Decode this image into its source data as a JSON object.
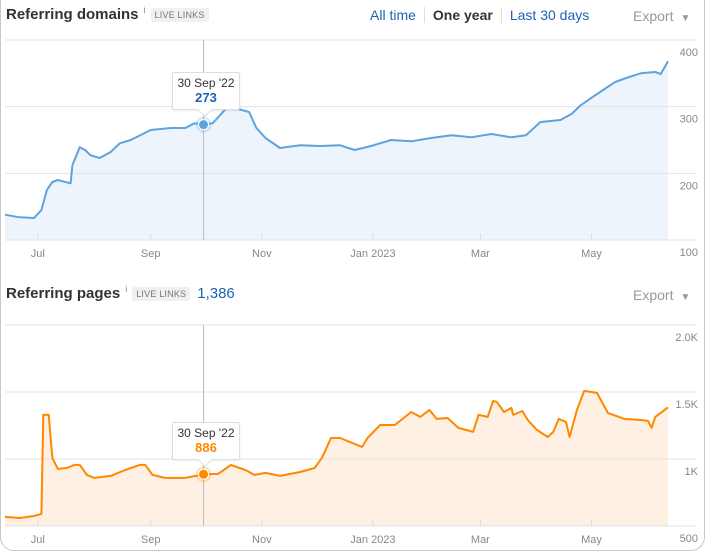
{
  "domains": {
    "title": "Referring domains",
    "info": "i",
    "badge": "LIVE LINKS",
    "range": {
      "all_time": "All time",
      "one_year": "One year",
      "last_30": "Last 30 days",
      "active": "One year"
    },
    "export_label": "Export",
    "export_arrow": "▼",
    "tooltip": {
      "date": "30 Sep '22",
      "value": "273"
    },
    "color": "#5fa2e0",
    "fill": "#eef4fc"
  },
  "pages": {
    "title": "Referring pages",
    "info": "i",
    "badge": "LIVE LINKS",
    "count": "1,386",
    "export_label": "Export",
    "export_arrow": "▼",
    "tooltip": {
      "date": "30 Sep '22",
      "value": "886"
    },
    "color": "#ff8800",
    "fill": "#fef0e2"
  },
  "chart_data": [
    {
      "type": "area",
      "title": "Referring domains",
      "x_unit": "days since 2022-07-01",
      "xlim": [
        -18,
        346
      ],
      "ylim": [
        100,
        400
      ],
      "x_ticks": [
        {
          "x": 0,
          "label": "Jul"
        },
        {
          "x": 62,
          "label": "Sep"
        },
        {
          "x": 123,
          "label": "Nov"
        },
        {
          "x": 184,
          "label": "Jan 2023"
        },
        {
          "x": 243,
          "label": "Mar"
        },
        {
          "x": 304,
          "label": "May"
        }
      ],
      "y_ticks": [
        {
          "y": 400,
          "label": "400"
        },
        {
          "y": 300,
          "label": "300"
        },
        {
          "y": 200,
          "label": "200"
        },
        {
          "y": 100,
          "label": "100"
        }
      ],
      "highlight": {
        "x": 91,
        "y": 273
      },
      "points": [
        [
          -18,
          138
        ],
        [
          -10,
          134
        ],
        [
          -2,
          133
        ],
        [
          2,
          145
        ],
        [
          5,
          175
        ],
        [
          8,
          187
        ],
        [
          11,
          190
        ],
        [
          18,
          185
        ],
        [
          19,
          212
        ],
        [
          23,
          239
        ],
        [
          26,
          235
        ],
        [
          29,
          227
        ],
        [
          34,
          223
        ],
        [
          40,
          232
        ],
        [
          45,
          245
        ],
        [
          51,
          250
        ],
        [
          62,
          265
        ],
        [
          73,
          268
        ],
        [
          81,
          268
        ],
        [
          86,
          275
        ],
        [
          91,
          273
        ],
        [
          96,
          275
        ],
        [
          103,
          296
        ],
        [
          108,
          298
        ],
        [
          116,
          292
        ],
        [
          120,
          268
        ],
        [
          125,
          253
        ],
        [
          133,
          238
        ],
        [
          144,
          242
        ],
        [
          155,
          241
        ],
        [
          166,
          242
        ],
        [
          174,
          235
        ],
        [
          183,
          241
        ],
        [
          194,
          250
        ],
        [
          205,
          248
        ],
        [
          216,
          253
        ],
        [
          227,
          257
        ],
        [
          238,
          254
        ],
        [
          249,
          259
        ],
        [
          260,
          254
        ],
        [
          268,
          257
        ],
        [
          276,
          277
        ],
        [
          287,
          280
        ],
        [
          293,
          289
        ],
        [
          298,
          302
        ],
        [
          306,
          317
        ],
        [
          312,
          328
        ],
        [
          317,
          337
        ],
        [
          323,
          343
        ],
        [
          331,
          350
        ],
        [
          339,
          352
        ],
        [
          342,
          349
        ],
        [
          346,
          368
        ]
      ]
    },
    {
      "type": "area",
      "title": "Referring pages",
      "x_unit": "days since 2022-07-01",
      "xlim": [
        -18,
        346
      ],
      "ylim": [
        500,
        2000
      ],
      "x_ticks": [
        {
          "x": 0,
          "label": "Jul"
        },
        {
          "x": 62,
          "label": "Sep"
        },
        {
          "x": 123,
          "label": "Nov"
        },
        {
          "x": 184,
          "label": "Jan 2023"
        },
        {
          "x": 243,
          "label": "Mar"
        },
        {
          "x": 304,
          "label": "May"
        }
      ],
      "y_ticks": [
        {
          "y": 2000,
          "label": "2.0K"
        },
        {
          "y": 1500,
          "label": "1.5K"
        },
        {
          "y": 1000,
          "label": "1K"
        },
        {
          "y": 500,
          "label": "500"
        }
      ],
      "highlight": {
        "x": 91,
        "y": 886
      },
      "points": [
        [
          -18,
          568
        ],
        [
          -10,
          560
        ],
        [
          -2,
          575
        ],
        [
          2,
          590
        ],
        [
          3,
          1329
        ],
        [
          6,
          1329
        ],
        [
          8,
          1008
        ],
        [
          11,
          926
        ],
        [
          16,
          933
        ],
        [
          20,
          956
        ],
        [
          23,
          956
        ],
        [
          27,
          881
        ],
        [
          31,
          859
        ],
        [
          40,
          874
        ],
        [
          48,
          918
        ],
        [
          56,
          956
        ],
        [
          59,
          956
        ],
        [
          63,
          881
        ],
        [
          70,
          859
        ],
        [
          81,
          859
        ],
        [
          91,
          886
        ],
        [
          99,
          889
        ],
        [
          106,
          956
        ],
        [
          114,
          918
        ],
        [
          119,
          881
        ],
        [
          125,
          896
        ],
        [
          133,
          874
        ],
        [
          144,
          903
        ],
        [
          152,
          933
        ],
        [
          156,
          1008
        ],
        [
          161,
          1157
        ],
        [
          166,
          1157
        ],
        [
          178,
          1090
        ],
        [
          181,
          1157
        ],
        [
          188,
          1254
        ],
        [
          196,
          1254
        ],
        [
          205,
          1351
        ],
        [
          210,
          1314
        ],
        [
          215,
          1366
        ],
        [
          219,
          1299
        ],
        [
          225,
          1306
        ],
        [
          231,
          1232
        ],
        [
          239,
          1202
        ],
        [
          242,
          1329
        ],
        [
          247,
          1314
        ],
        [
          250,
          1433
        ],
        [
          252,
          1426
        ],
        [
          256,
          1351
        ],
        [
          260,
          1381
        ],
        [
          261,
          1329
        ],
        [
          266,
          1358
        ],
        [
          269,
          1291
        ],
        [
          274,
          1217
        ],
        [
          280,
          1164
        ],
        [
          283,
          1202
        ],
        [
          286,
          1299
        ],
        [
          290,
          1276
        ],
        [
          292,
          1164
        ],
        [
          296,
          1366
        ],
        [
          300,
          1508
        ],
        [
          307,
          1493
        ],
        [
          313,
          1344
        ],
        [
          322,
          1299
        ],
        [
          331,
          1291
        ],
        [
          335,
          1284
        ],
        [
          337,
          1232
        ],
        [
          339,
          1314
        ],
        [
          346,
          1386
        ]
      ]
    }
  ]
}
